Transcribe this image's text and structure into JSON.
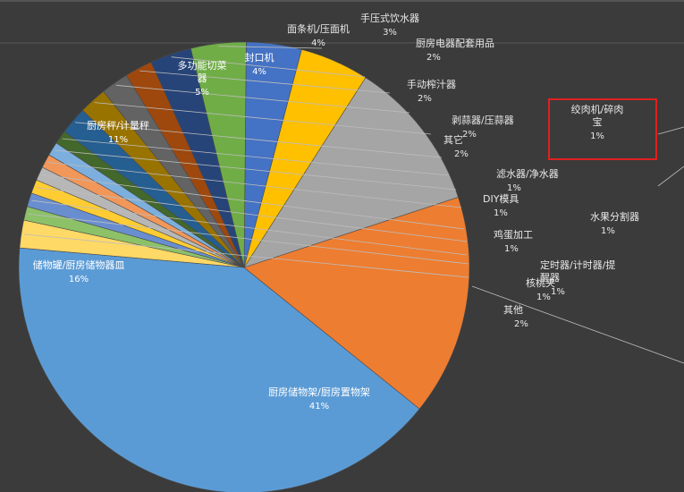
{
  "chart_data": {
    "type": "pie",
    "start_angle_deg": 185,
    "direction": "counterclockwise",
    "slices": [
      {
        "label": "厨房储物架/厨房置物架",
        "pct": "41%",
        "value": 41,
        "color": "#5b9bd5"
      },
      {
        "label": "储物罐/厨房储物器皿",
        "pct": "16%",
        "value": 16,
        "color": "#ed7d31"
      },
      {
        "label": "厨房秤/计量秤",
        "pct": "11%",
        "value": 11,
        "color": "#a5a5a5"
      },
      {
        "label": "多功能切菜器",
        "pct": "5%",
        "value": 5,
        "color": "#ffc000"
      },
      {
        "label": "封口机",
        "pct": "4%",
        "value": 4,
        "color": "#4472c4"
      },
      {
        "label": "面条机/压面机",
        "pct": "4%",
        "value": 4,
        "color": "#70ad47"
      },
      {
        "label": "手压式饮水器",
        "pct": "3%",
        "value": 3,
        "color": "#264478"
      },
      {
        "label": "厨房电器配套用品",
        "pct": "2%",
        "value": 2,
        "color": "#9e480e"
      },
      {
        "label": "手动榨汁器",
        "pct": "2%",
        "value": 2,
        "color": "#636363"
      },
      {
        "label": "剥蒜器/压蒜器",
        "pct": "2%",
        "value": 2,
        "color": "#997300"
      },
      {
        "label": "其它",
        "pct": "2%",
        "value": 2,
        "color": "#255e91"
      },
      {
        "label": "绞肉机/碎肉宝",
        "pct": "1%",
        "value": 1,
        "color": "#43682b"
      },
      {
        "label": "滤水器/净水器",
        "pct": "1%",
        "value": 1,
        "color": "#7cafdd"
      },
      {
        "label": "DIY模具",
        "pct": "1%",
        "value": 1,
        "color": "#f1975a"
      },
      {
        "label": "水果分割器",
        "pct": "1%",
        "value": 1,
        "color": "#b7b7b7"
      },
      {
        "label": "鸡蛋加工",
        "pct": "1%",
        "value": 1,
        "color": "#ffcd33"
      },
      {
        "label": "定时器/计时器/提醒器",
        "pct": "1%",
        "value": 1,
        "color": "#698ed0"
      },
      {
        "label": "核桃夹",
        "pct": "1%",
        "value": 1,
        "color": "#8cc168"
      },
      {
        "label": "其他",
        "pct": "2%",
        "value": 2,
        "color": "#ffd966"
      }
    ]
  }
}
